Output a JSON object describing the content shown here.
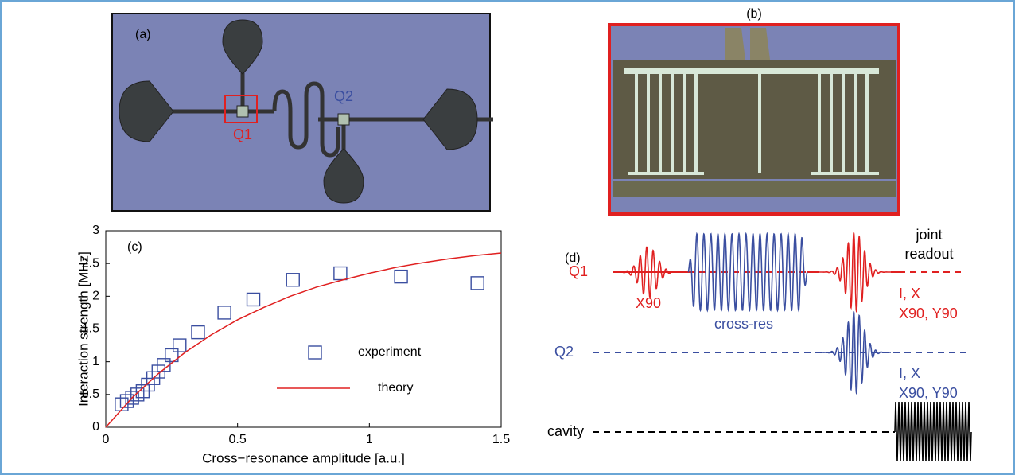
{
  "chart_data": {
    "type": "scatter",
    "label": "(c)",
    "xlabel": "Cross−resonance amplitude [a.u.]",
    "ylabel": "Interaction strength [MHz]",
    "xlim": [
      0,
      1.5
    ],
    "ylim": [
      0,
      3
    ],
    "xticks": [
      0,
      0.5,
      1,
      1.5
    ],
    "yticks": [
      0,
      0.5,
      1,
      1.5,
      2,
      2.5,
      3
    ],
    "legend": "center-right",
    "series": [
      {
        "name": "experiment",
        "color": "#3a4ea0",
        "marker": "square",
        "x": [
          0.06,
          0.08,
          0.1,
          0.12,
          0.14,
          0.16,
          0.18,
          0.2,
          0.22,
          0.25,
          0.28,
          0.35,
          0.45,
          0.56,
          0.71,
          0.89,
          1.12,
          1.41
        ],
        "values": [
          0.35,
          0.4,
          0.45,
          0.5,
          0.55,
          0.65,
          0.75,
          0.85,
          0.95,
          1.1,
          1.25,
          1.45,
          1.75,
          1.95,
          2.25,
          2.35,
          2.3,
          2.2
        ]
      },
      {
        "name": "theory",
        "color": "#e02020",
        "marker": "line",
        "x": [
          0,
          0.1,
          0.2,
          0.3,
          0.4,
          0.5,
          0.6,
          0.7,
          0.8,
          0.9,
          1.0,
          1.1,
          1.2,
          1.3,
          1.4,
          1.5
        ],
        "values": [
          0,
          0.45,
          0.82,
          1.14,
          1.41,
          1.64,
          1.83,
          2.0,
          2.14,
          2.25,
          2.35,
          2.44,
          2.51,
          2.57,
          2.62,
          2.66
        ]
      }
    ]
  },
  "panel_a": {
    "label": "(a)",
    "q1": "Q1",
    "q2": "Q2"
  },
  "panel_b": {
    "label": "(b)"
  },
  "panel_d": {
    "label": "(d)",
    "q1": "Q1",
    "x90": "X90",
    "cross_res": "cross-res",
    "joint": "joint",
    "readout": "readout",
    "q1_ix": "I, X",
    "q1_xy": "X90, Y90",
    "q2": "Q2",
    "q2_ix": "I, X",
    "q2_xy": "X90, Y90",
    "cavity": "cavity"
  }
}
